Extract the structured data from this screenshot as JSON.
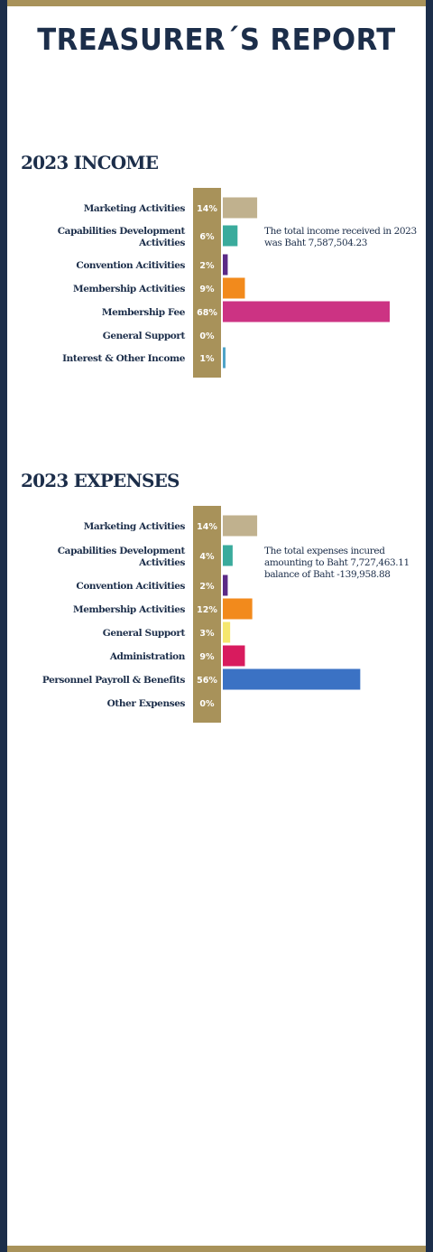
{
  "page": {
    "title": "TREASURER´S REPORT"
  },
  "income": {
    "heading": "2023 INCOME",
    "note": "The total income received in 2023 was Baht 7,587,504.23"
  },
  "expenses": {
    "heading": "2023 EXPENSES",
    "note": "The total expenses incured amounting to Baht 7,727,463.11 balance of Baht -139,958.88"
  },
  "chart_data": [
    {
      "type": "bar",
      "orientation": "horizontal",
      "title": "2023 INCOME",
      "unit": "%",
      "categories": [
        [
          "Marketing Activities"
        ],
        [
          "Capabilities Development",
          "Activities"
        ],
        [
          "Convention Acitivities"
        ],
        [
          "Membership Activities"
        ],
        [
          "Membership Fee"
        ],
        [
          "General Support"
        ],
        [
          "Interest & Other Income"
        ]
      ],
      "values": [
        14,
        6,
        2,
        9,
        68,
        0,
        1
      ],
      "value_labels": [
        "14%",
        "6%",
        "2%",
        "9%",
        "68%",
        "0%",
        "1%"
      ],
      "colors": [
        "#c0b18e",
        "#3aab9c",
        "#5b2a86",
        "#f28a1c",
        "#cc3383",
        "#cccccc",
        "#4fa3c7"
      ],
      "xlim": [
        0,
        68
      ]
    },
    {
      "type": "bar",
      "orientation": "horizontal",
      "title": "2023 EXPENSES",
      "unit": "%",
      "categories": [
        [
          "Marketing Activities"
        ],
        [
          "Capabilities Development",
          "Activities"
        ],
        [
          "Convention Acitivities"
        ],
        [
          "Membership Activities"
        ],
        [
          "General Support"
        ],
        [
          "Administration"
        ],
        [
          "Personnel Payroll & Benefits"
        ],
        [
          "Other Expenses"
        ]
      ],
      "values": [
        14,
        4,
        2,
        12,
        3,
        9,
        56,
        0
      ],
      "value_labels": [
        "14%",
        "4%",
        "2%",
        "12%",
        "3%",
        "9%",
        "56%",
        "0%"
      ],
      "colors": [
        "#c0b18e",
        "#3aab9c",
        "#5b2a86",
        "#f28a1c",
        "#f5e76e",
        "#d81b5e",
        "#3b72c4",
        "#cccccc"
      ],
      "xlim": [
        0,
        68
      ]
    }
  ]
}
